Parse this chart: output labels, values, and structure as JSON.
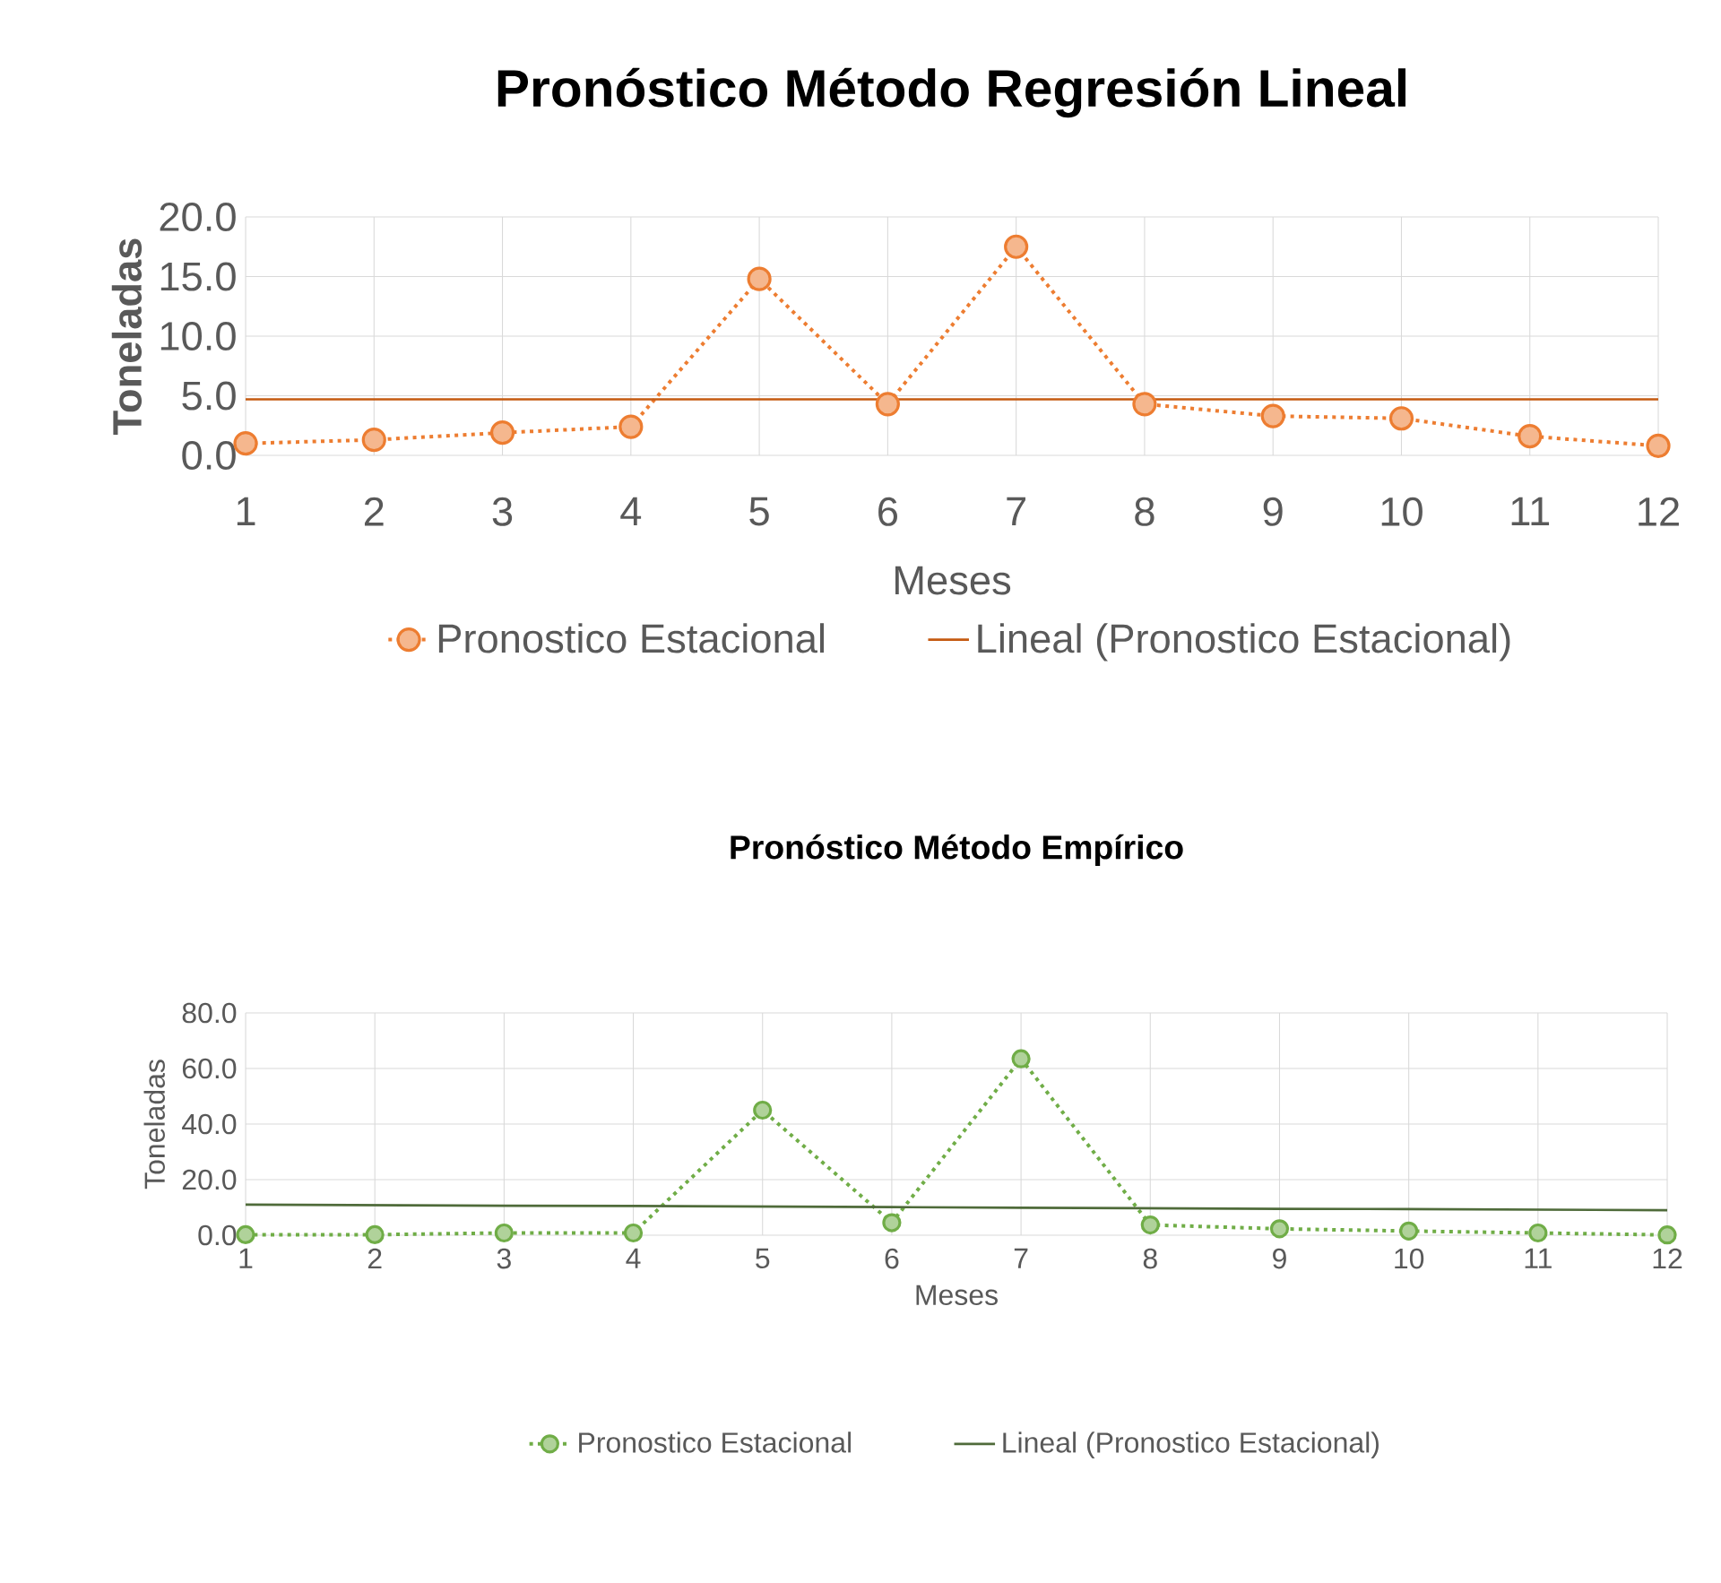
{
  "chart_data": [
    {
      "type": "line",
      "title": "Pronóstico  Método Regresión Lineal",
      "xlabel": "Meses",
      "ylabel": "Toneladas",
      "x": [
        1,
        2,
        3,
        4,
        5,
        6,
        7,
        8,
        9,
        10,
        11,
        12
      ],
      "series": [
        {
          "name": "Pronostico  Estacional",
          "color": "#ed7d31",
          "marker": "circle",
          "line_style": "dotted",
          "values": [
            1.0,
            1.3,
            1.9,
            2.4,
            14.8,
            4.3,
            17.5,
            4.3,
            3.3,
            3.1,
            1.6,
            0.8
          ]
        },
        {
          "name": "Lineal (Pronostico  Estacional)",
          "color": "#c55a11",
          "marker": "none",
          "line_style": "solid",
          "values": [
            4.7,
            4.7,
            4.7,
            4.7,
            4.7,
            4.7,
            4.7,
            4.7,
            4.7,
            4.7,
            4.7,
            4.7
          ]
        }
      ],
      "xlim": [
        1,
        12
      ],
      "xticks": [
        1,
        2,
        3,
        4,
        5,
        6,
        7,
        8,
        9,
        10,
        11,
        12
      ],
      "ylim": [
        0,
        20
      ],
      "yticks": [
        {
          "value": 0,
          "label": "0.0"
        },
        {
          "value": 5,
          "label": "5.0"
        },
        {
          "value": 10,
          "label": "10.0"
        },
        {
          "value": 15,
          "label": "15.0"
        },
        {
          "value": 20,
          "label": "20.0"
        }
      ],
      "grid": true,
      "legend": "bottom"
    },
    {
      "type": "line",
      "title": "Pronóstico  Método Empírico",
      "xlabel": "Meses",
      "ylabel": "Toneladas",
      "x": [
        1,
        2,
        3,
        4,
        5,
        6,
        7,
        8,
        9,
        10,
        11,
        12
      ],
      "series": [
        {
          "name": "Pronostico  Estacional",
          "color": "#70ad47",
          "marker": "circle",
          "line_style": "dotted",
          "values": [
            0.2,
            0.2,
            0.8,
            0.8,
            45.0,
            4.5,
            63.5,
            3.7,
            2.3,
            1.5,
            0.8,
            0.1
          ]
        },
        {
          "name": "Lineal (Pronostico  Estacional)",
          "color": "#4f6b3a",
          "marker": "none",
          "line_style": "solid",
          "values": [
            11.0,
            10.8,
            10.6,
            10.5,
            10.3,
            10.1,
            9.9,
            9.7,
            9.5,
            9.4,
            9.2,
            9.0
          ]
        }
      ],
      "xlim": [
        1,
        12
      ],
      "xticks": [
        1,
        2,
        3,
        4,
        5,
        6,
        7,
        8,
        9,
        10,
        11,
        12
      ],
      "ylim": [
        0,
        80
      ],
      "yticks": [
        {
          "value": 0,
          "label": "0.0"
        },
        {
          "value": 20,
          "label": "20.0"
        },
        {
          "value": 40,
          "label": "40.0"
        },
        {
          "value": 60,
          "label": "60.0"
        },
        {
          "value": 80,
          "label": "80.0"
        }
      ],
      "grid": true,
      "legend": "bottom"
    }
  ]
}
